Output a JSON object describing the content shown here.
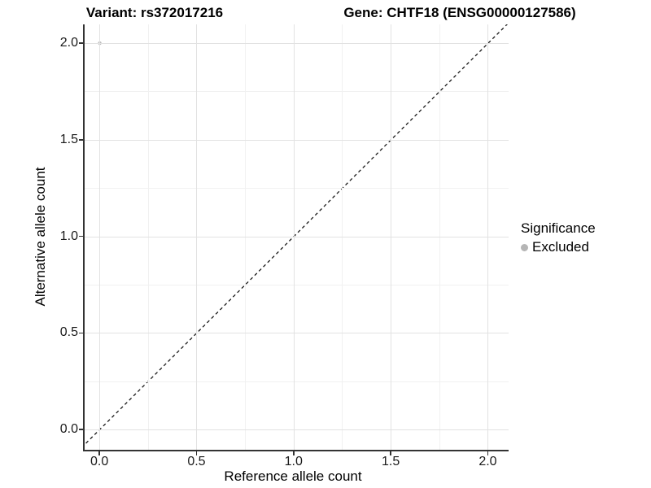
{
  "chart_data": {
    "type": "scatter",
    "titles": {
      "left": "Variant: rs372017216",
      "right": "Gene: CHTF18 (ENSG00000127586)"
    },
    "xlabel": "Reference allele count",
    "ylabel": "Alternative allele count",
    "x_ticks": [
      0.0,
      0.5,
      1.0,
      1.5,
      2.0
    ],
    "x_tick_labels": [
      "0.0",
      "0.5",
      "1.0",
      "1.5",
      "2.0"
    ],
    "y_ticks": [
      0.0,
      0.5,
      1.0,
      1.5,
      2.0
    ],
    "y_tick_labels": [
      "0.0",
      "0.5",
      "1.0",
      "1.5",
      "2.0"
    ],
    "x_minor_ticks": [
      0.25,
      0.75,
      1.25,
      1.75
    ],
    "y_minor_ticks": [
      0.25,
      0.75,
      1.25,
      1.75
    ],
    "xlim": [
      -0.078,
      2.107
    ],
    "ylim": [
      -0.105,
      2.097
    ],
    "grid": true,
    "reference_line": {
      "kind": "identity",
      "equation": "y = x",
      "style": "dashed",
      "color": "#1a1a1a"
    },
    "series": [
      {
        "name": "Excluded",
        "color": "#bdbdbd",
        "point_radius": 2.2,
        "points": [
          {
            "x": 0.0,
            "y": 2.0
          }
        ]
      }
    ],
    "legend": {
      "title": "Significance",
      "position": "right",
      "entries": [
        {
          "label": "Excluded",
          "color": "#b5b5b5"
        }
      ]
    },
    "colors": {
      "axis_line": "#333333",
      "grid_major": "#e2e2e2",
      "grid_minor": "#f1f1f1",
      "background": "#ffffff"
    }
  }
}
